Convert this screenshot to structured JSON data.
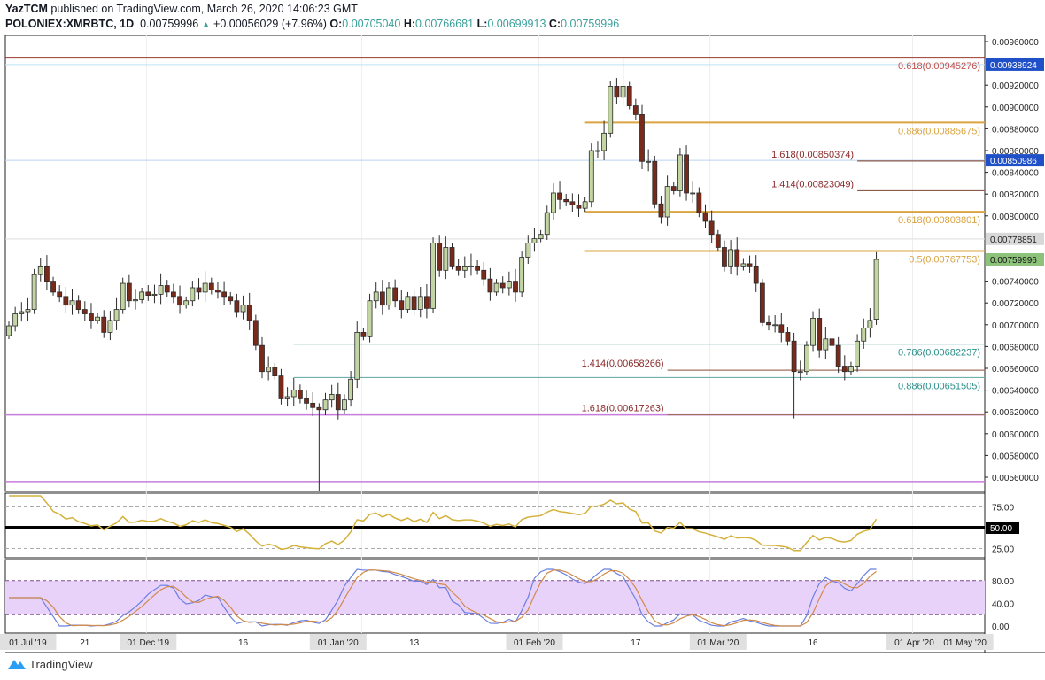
{
  "header": {
    "author": "YazTCM",
    "published": "published on TradingView.com, March 26, 2020 14:06:23 GMT",
    "symbol": "POLONIEX:XMRBTC, 1D",
    "last": "0.00759996",
    "change": "+0.00056029 (+7.96%)",
    "o_label": "O:",
    "o": "0.00705040",
    "h_label": "H:",
    "h": "0.00766681",
    "l_label": "L:",
    "l": "0.00699913",
    "c_label": "C:",
    "c": "0.00759996"
  },
  "footer": {
    "brand": "TradingView",
    "logo_icon": "tradingview-logo-icon"
  },
  "chart_data": {
    "type": "candlestick",
    "interval": "1D",
    "start_date": "2019-11-10",
    "ylim": [
      0.0055,
      0.0097
    ],
    "y_ticks": [
      "0.00960000",
      "0.00920000",
      "0.00900000",
      "0.00880000",
      "0.00860000",
      "0.00840000",
      "0.00820000",
      "0.00800000",
      "0.00740000",
      "0.00720000",
      "0.00700000",
      "0.00680000",
      "0.00660000",
      "0.00640000",
      "0.00620000",
      "0.00600000",
      "0.00580000",
      "0.00560000"
    ],
    "x_ticks": [
      {
        "label": "01 Jul '19",
        "index": 3,
        "boxed": true
      },
      {
        "label": "21",
        "index": 12
      },
      {
        "label": "01 Dec '19",
        "index": 22,
        "boxed": true
      },
      {
        "label": "16",
        "index": 37
      },
      {
        "label": "01 Jan '20",
        "index": 52,
        "boxed": true
      },
      {
        "label": "13",
        "index": 64
      },
      {
        "label": "01 Feb '20",
        "index": 83,
        "boxed": true
      },
      {
        "label": "17",
        "index": 99
      },
      {
        "label": "01 Mar '20",
        "index": 112,
        "boxed": true
      },
      {
        "label": "16",
        "index": 127
      },
      {
        "label": "01 Apr '20",
        "index": 143,
        "boxed": true
      },
      {
        "label": "01 May '20",
        "index": 151,
        "boxed": true
      }
    ],
    "closes": [
      0.00699,
      0.0071,
      0.00712,
      0.00714,
      0.00746,
      0.00754,
      0.0074,
      0.0073,
      0.00726,
      0.00718,
      0.00722,
      0.00714,
      0.0071,
      0.00704,
      0.00707,
      0.00693,
      0.00704,
      0.00714,
      0.00738,
      0.00722,
      0.00723,
      0.0073,
      0.00727,
      0.00728,
      0.00736,
      0.0073,
      0.00726,
      0.00718,
      0.00722,
      0.00734,
      0.0073,
      0.00738,
      0.00732,
      0.0073,
      0.00726,
      0.00722,
      0.00712,
      0.00718,
      0.00704,
      0.00681,
      0.00657,
      0.00661,
      0.00653,
      0.00632,
      0.00634,
      0.0064,
      0.00632,
      0.00628,
      0.00624,
      0.00622,
      0.00631,
      0.00636,
      0.00622,
      0.00631,
      0.0065,
      0.00693,
      0.00689,
      0.00722,
      0.0073,
      0.00718,
      0.00734,
      0.00722,
      0.00714,
      0.00726,
      0.00714,
      0.00726,
      0.00715,
      0.00775,
      0.0075,
      0.00771,
      0.00754,
      0.0075,
      0.00754,
      0.00754,
      0.0075,
      0.00742,
      0.0073,
      0.00738,
      0.00734,
      0.0074,
      0.0073,
      0.00762,
      0.00775,
      0.00779,
      0.00783,
      0.00803,
      0.00821,
      0.00815,
      0.00813,
      0.0081,
      0.00807,
      0.00813,
      0.0086,
      0.0086,
      0.00876,
      0.00919,
      0.00909,
      0.00919,
      0.00901,
      0.00893,
      0.0085,
      0.0085,
      0.00811,
      0.00799,
      0.00827,
      0.00823,
      0.00856,
      0.00821,
      0.00821,
      0.00803,
      0.00795,
      0.00783,
      0.00771,
      0.00754,
      0.00769,
      0.00754,
      0.00756,
      0.00754,
      0.00738,
      0.00702,
      0.007,
      0.007,
      0.00693,
      0.00685,
      0.00657,
      0.00657,
      0.00681,
      0.00706,
      0.00677,
      0.00687,
      0.00681,
      0.00662,
      0.00657,
      0.00662,
      0.00685,
      0.00697,
      0.00704,
      0.00759996
    ],
    "extremes": [
      {
        "index": 49,
        "low": 0.00547
      },
      {
        "index": 97,
        "high": 0.00945
      },
      {
        "index": 124,
        "low": 0.00614
      },
      {
        "index": 137,
        "open": 0.0070504,
        "high": 0.00766681,
        "low": 0.00699913
      }
    ],
    "colors": {
      "up": "#c3d5a3",
      "down": "#7a2a1a",
      "outline": "#2b2b2b"
    },
    "levels": [
      {
        "label": "0.618(0.00945276)",
        "value": 0.00945276,
        "color": "#9a3b2e",
        "from_index": -1,
        "label_color": "#c0504d",
        "label_side": "right"
      },
      {
        "label": "0.886(0.00885675)",
        "value": 0.00885675,
        "color": "#d9a441",
        "from_index": 91,
        "label_color": "#d9a441",
        "label_side": "right"
      },
      {
        "label": "1.618(0.00850374)",
        "value": 0.00850374,
        "color": "#8b5a4a",
        "from_index": 134,
        "label_color": "#8b2a2a",
        "label_side": "left"
      },
      {
        "label": "1.414(0.00823049)",
        "value": 0.00823049,
        "color": "#8b5a4a",
        "from_index": 134,
        "label_color": "#8b2a2a",
        "label_side": "left"
      },
      {
        "label": "0.618(0.00803801)",
        "value": 0.00803801,
        "color": "#d9a441",
        "from_index": 91,
        "label_color": "#d9a441",
        "label_side": "right"
      },
      {
        "label": "0.5(0.00767753)",
        "value": 0.00767753,
        "color": "#d9a441",
        "from_index": 91,
        "label_color": "#d9a441",
        "label_side": "right"
      },
      {
        "label": "0.786(0.00682237)",
        "value": 0.00682237,
        "color": "#6fb0ad",
        "from_index": 45,
        "label_color": "#2a8f8a",
        "label_side": "right"
      },
      {
        "label": "1.414(0.00658266)",
        "value": 0.00658266,
        "color": "#a0705e",
        "from_index": 104,
        "label_color": "#8b2a2a",
        "label_side": "left"
      },
      {
        "label": "0.886(0.00651505)",
        "value": 0.00651505,
        "color": "#6fb0ad",
        "from_index": 45,
        "label_color": "#2a8f8a",
        "label_side": "right"
      },
      {
        "label": "1.618(0.00617263)",
        "value": 0.00617263,
        "color": "#a0705e",
        "from_index": 104,
        "label_color": "#8b2a2a",
        "label_side": "left"
      }
    ],
    "purple_lines": [
      0.00617263,
      0.00556
    ],
    "price_tags": [
      {
        "text": "0.00938924",
        "value": 0.00938924,
        "bg": "#2050c8",
        "fg": "#ffffff",
        "line": "#bde3f0"
      },
      {
        "text": "0.00850986",
        "value": 0.00850986,
        "bg": "#2050c8",
        "fg": "#ffffff",
        "line": "#bcd3ef"
      },
      {
        "text": "0.00778851",
        "value": 0.00778851,
        "bg": "#d8d8d8",
        "fg": "#222222",
        "line": "#dddddd"
      },
      {
        "text": "0.00759996",
        "value": 0.00759996,
        "bg": "#8cc27a",
        "fg": "#111111",
        "line": null
      }
    ],
    "rsi": {
      "period": 14,
      "color": "#d4b13a",
      "levels": [
        75,
        50,
        25
      ],
      "tick_labels": [
        "75.00",
        "50.00",
        "25.00"
      ],
      "mid_tag": "50.00"
    },
    "stoch_rsi": {
      "k_color": "#6b7fe0",
      "d_color": "#d08a4a",
      "band": [
        20,
        80
      ],
      "band_color": "#e9d2fa",
      "tick_labels": [
        "80.00",
        "40.00",
        "0.00"
      ]
    }
  }
}
